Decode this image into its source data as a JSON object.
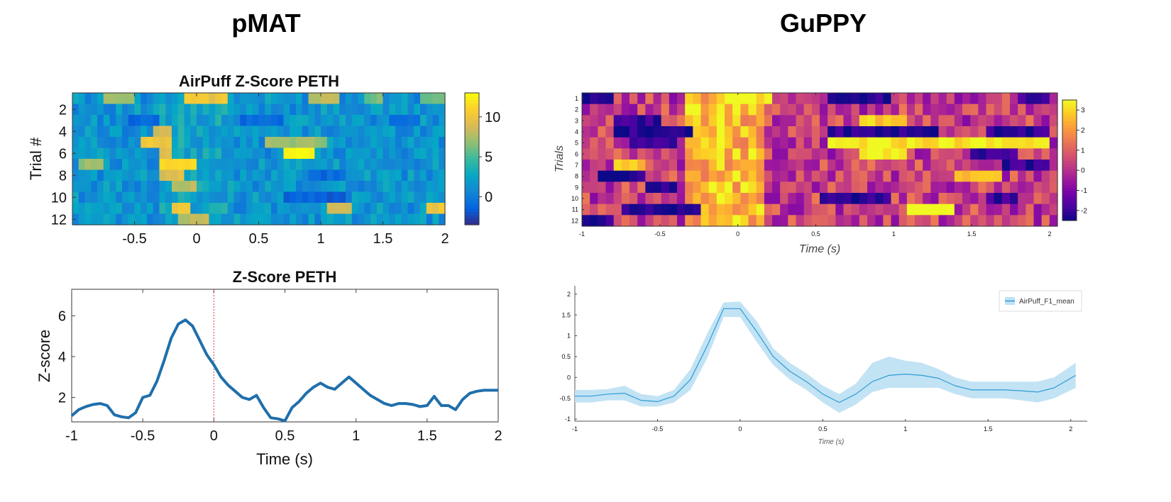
{
  "titles": {
    "left": "pMAT",
    "right": "GuPPY"
  },
  "chart_data": [
    {
      "id": "pmat-heatmap",
      "type": "heatmap",
      "title": "AirPuff  Z-Score PETH",
      "xlabel": "",
      "ylabel": "Trial #",
      "xlim": [
        -1,
        2
      ],
      "x_ticks": [
        -0.5,
        0,
        0.5,
        1,
        1.5,
        2
      ],
      "x_tick_labels": [
        "-0.5",
        "0",
        "0.5",
        "1",
        "1.5",
        "2"
      ],
      "y_ticks": [
        2,
        4,
        6,
        8,
        10,
        12
      ],
      "y_tick_labels": [
        "2",
        "4",
        "6",
        "8",
        "10",
        "12"
      ],
      "trials": 12,
      "colormap": "parula",
      "colorbar": {
        "range": [
          -3.5,
          13
        ],
        "ticks": [
          0,
          5,
          10
        ],
        "tick_labels": [
          "0",
          "5",
          "10"
        ]
      },
      "events": [
        {
          "trial": 1,
          "t0": -0.75,
          "t1": -0.5,
          "v": 7
        },
        {
          "trial": 1,
          "t0": -0.1,
          "t1": 0.25,
          "v": 10
        },
        {
          "trial": 1,
          "t0": 0.9,
          "t1": 1.15,
          "v": 8
        },
        {
          "trial": 1,
          "t0": 1.35,
          "t1": 1.5,
          "v": 6
        },
        {
          "trial": 1,
          "t0": 1.8,
          "t1": 2.0,
          "v": 6
        },
        {
          "trial": 3,
          "t0": -0.55,
          "t1": -0.3,
          "v": -1
        },
        {
          "trial": 3,
          "t0": 0.35,
          "t1": 0.7,
          "v": -1
        },
        {
          "trial": 3,
          "t0": 1.55,
          "t1": 1.8,
          "v": -1
        },
        {
          "trial": 4,
          "t0": -0.35,
          "t1": -0.2,
          "v": 9
        },
        {
          "trial": 5,
          "t0": -0.45,
          "t1": -0.2,
          "v": 10
        },
        {
          "trial": 5,
          "t0": 0.55,
          "t1": 1.05,
          "v": 7
        },
        {
          "trial": 6,
          "t0": -0.3,
          "t1": -0.2,
          "v": 9
        },
        {
          "trial": 6,
          "t0": 0.7,
          "t1": 0.95,
          "v": 13
        },
        {
          "trial": 7,
          "t0": -0.95,
          "t1": -0.75,
          "v": 7
        },
        {
          "trial": 7,
          "t0": -0.3,
          "t1": 0.0,
          "v": 11
        },
        {
          "trial": 8,
          "t0": -0.3,
          "t1": -0.1,
          "v": 9
        },
        {
          "trial": 8,
          "t0": 0.9,
          "t1": 1.2,
          "v": -1
        },
        {
          "trial": 9,
          "t0": -0.2,
          "t1": 0.0,
          "v": 8
        },
        {
          "trial": 10,
          "t0": 0.7,
          "t1": 1.2,
          "v": -1.5
        },
        {
          "trial": 11,
          "t0": -0.2,
          "t1": -0.05,
          "v": 10
        },
        {
          "trial": 11,
          "t0": 1.05,
          "t1": 1.25,
          "v": 8
        },
        {
          "trial": 11,
          "t0": 1.85,
          "t1": 2.0,
          "v": 10
        },
        {
          "trial": 12,
          "t0": -0.15,
          "t1": 0.1,
          "v": 8
        }
      ]
    },
    {
      "id": "pmat-line",
      "type": "line",
      "title": "Z-Score PETH",
      "xlabel": "Time (s)",
      "ylabel": "Z-score",
      "xlim": [
        -1,
        2
      ],
      "ylim": [
        0.8,
        7.3
      ],
      "x_ticks": [
        -1,
        -0.5,
        0,
        0.5,
        1,
        1.5,
        2
      ],
      "x_tick_labels": [
        "-1",
        "-0.5",
        "0",
        "0.5",
        "1",
        "1.5",
        "2"
      ],
      "y_ticks": [
        2,
        4,
        6
      ],
      "y_tick_labels": [
        "2",
        "4",
        "6"
      ],
      "vline_x": 0,
      "series": [
        {
          "color": "#1f6fab",
          "x": [
            -1,
            -0.95,
            -0.9,
            -0.85,
            -0.8,
            -0.75,
            -0.7,
            -0.65,
            -0.6,
            -0.55,
            -0.5,
            -0.45,
            -0.4,
            -0.35,
            -0.3,
            -0.25,
            -0.2,
            -0.15,
            -0.1,
            -0.05,
            0,
            0.05,
            0.1,
            0.15,
            0.2,
            0.25,
            0.3,
            0.35,
            0.4,
            0.45,
            0.5,
            0.55,
            0.6,
            0.65,
            0.7,
            0.75,
            0.8,
            0.85,
            0.9,
            0.95,
            1.0,
            1.05,
            1.1,
            1.15,
            1.2,
            1.25,
            1.3,
            1.35,
            1.4,
            1.45,
            1.5,
            1.55,
            1.6,
            1.65,
            1.7,
            1.75,
            1.8,
            1.85,
            1.9,
            1.95,
            2.0
          ],
          "y": [
            1.1,
            1.4,
            1.55,
            1.65,
            1.7,
            1.6,
            1.15,
            1.05,
            1.0,
            1.25,
            2.0,
            2.1,
            2.8,
            3.8,
            4.9,
            5.6,
            5.8,
            5.5,
            4.8,
            4.1,
            3.6,
            3.0,
            2.6,
            2.3,
            2.0,
            1.9,
            2.1,
            1.5,
            1.0,
            0.95,
            0.85,
            1.5,
            1.8,
            2.2,
            2.5,
            2.7,
            2.5,
            2.4,
            2.7,
            3.0,
            2.7,
            2.4,
            2.1,
            1.9,
            1.7,
            1.6,
            1.7,
            1.7,
            1.65,
            1.55,
            1.6,
            2.05,
            1.6,
            1.6,
            1.4,
            1.9,
            2.2,
            2.3,
            2.35,
            2.35,
            2.35
          ]
        }
      ]
    },
    {
      "id": "guppy-heatmap",
      "type": "heatmap",
      "xlabel": "Time (s)",
      "ylabel": "Trials",
      "xlim": [
        -1,
        2.05
      ],
      "x_ticks": [
        -1,
        -0.5,
        0,
        0.5,
        1,
        1.5,
        2
      ],
      "x_tick_labels": [
        "-1",
        "-0.5",
        "0",
        "0.5",
        "1",
        "1.5",
        "2"
      ],
      "y_ticks": [
        1,
        2,
        3,
        4,
        5,
        6,
        7,
        8,
        9,
        10,
        11,
        12
      ],
      "y_tick_labels": [
        "1",
        "2",
        "3",
        "4",
        "5",
        "6",
        "7",
        "8",
        "9",
        "10",
        "11",
        "12"
      ],
      "trials": 12,
      "colormap": "plasma",
      "colorbar": {
        "range": [
          -2.5,
          3.5
        ],
        "ticks": [
          -2,
          -1,
          0,
          1,
          2,
          3
        ],
        "tick_labels": [
          "-2",
          "-1",
          "0",
          "1",
          "2",
          "3"
        ]
      },
      "events": [
        {
          "trial": 1,
          "t0": -1.0,
          "t1": -0.8,
          "v": -2.3
        },
        {
          "trial": 1,
          "t0": -0.1,
          "t1": 0.2,
          "v": 3.3
        },
        {
          "trial": 1,
          "t0": 0.6,
          "t1": 1.0,
          "v": -2.3
        },
        {
          "trial": 1,
          "t0": 1.8,
          "t1": 2.0,
          "v": -2
        },
        {
          "trial": 3,
          "t0": -0.8,
          "t1": -0.5,
          "v": -2
        },
        {
          "trial": 3,
          "t0": 0.8,
          "t1": 1.1,
          "v": 2.8
        },
        {
          "trial": 4,
          "t0": -0.8,
          "t1": -0.3,
          "v": -2.3
        },
        {
          "trial": 4,
          "t0": 0.6,
          "t1": 1.3,
          "v": -2.2
        },
        {
          "trial": 4,
          "t0": 1.6,
          "t1": 2.0,
          "v": -2
        },
        {
          "trial": 5,
          "t0": -0.7,
          "t1": -0.4,
          "v": -2.2
        },
        {
          "trial": 5,
          "t0": 0.6,
          "t1": 2.0,
          "v": 3.2
        },
        {
          "trial": 6,
          "t0": 0.8,
          "t1": 1.1,
          "v": 3.4
        },
        {
          "trial": 6,
          "t0": 1.5,
          "t1": 1.8,
          "v": -2
        },
        {
          "trial": 7,
          "t0": -0.8,
          "t1": -0.6,
          "v": 2.8
        },
        {
          "trial": 7,
          "t0": 1.7,
          "t1": 2.0,
          "v": -2
        },
        {
          "trial": 8,
          "t0": -0.9,
          "t1": -0.6,
          "v": -2.3
        },
        {
          "trial": 8,
          "t0": 1.4,
          "t1": 1.7,
          "v": 2.5
        },
        {
          "trial": 9,
          "t0": -0.6,
          "t1": -0.4,
          "v": -2.2
        },
        {
          "trial": 10,
          "t0": 0.5,
          "t1": 1.0,
          "v": -2.3
        },
        {
          "trial": 10,
          "t0": 1.6,
          "t1": 1.8,
          "v": -2
        },
        {
          "trial": 11,
          "t0": -0.75,
          "t1": -0.25,
          "v": -2.4
        },
        {
          "trial": 11,
          "t0": 1.1,
          "t1": 1.4,
          "v": 3.2
        },
        {
          "trial": 12,
          "t0": -1.0,
          "t1": -0.8,
          "v": -2.3
        }
      ]
    },
    {
      "id": "guppy-line",
      "type": "line",
      "xlabel": "Time (s)",
      "ylabel": "",
      "xlim": [
        -1,
        2.1
      ],
      "ylim": [
        -1.05,
        2.2
      ],
      "x_ticks": [
        -1,
        -0.5,
        0,
        0.5,
        1,
        1.5,
        2
      ],
      "x_tick_labels": [
        "-1",
        "-0.5",
        "0",
        "0.5",
        "1",
        "1.5",
        "2"
      ],
      "y_ticks": [
        -1,
        -0.5,
        0,
        0.5,
        1,
        1.5,
        2
      ],
      "y_tick_labels": [
        "-1",
        "-0.5",
        "0",
        "0.5",
        "1",
        "1.5",
        "2"
      ],
      "legend": {
        "position": "top-right"
      },
      "series": [
        {
          "name": "AirPuff_F1_mean",
          "color": "#2e9bd6",
          "fill": "#bfe2f3",
          "x": [
            -1,
            -0.9,
            -0.8,
            -0.7,
            -0.6,
            -0.5,
            -0.4,
            -0.3,
            -0.2,
            -0.1,
            0,
            0.1,
            0.2,
            0.3,
            0.4,
            0.5,
            0.6,
            0.7,
            0.8,
            0.9,
            1.0,
            1.1,
            1.2,
            1.3,
            1.4,
            1.5,
            1.6,
            1.7,
            1.8,
            1.9,
            2.03
          ],
          "y": [
            -0.45,
            -0.45,
            -0.4,
            -0.38,
            -0.55,
            -0.58,
            -0.45,
            -0.05,
            0.75,
            1.65,
            1.65,
            1.1,
            0.5,
            0.15,
            -0.1,
            -0.4,
            -0.6,
            -0.4,
            -0.1,
            0.05,
            0.08,
            0.05,
            -0.02,
            -0.2,
            -0.3,
            -0.3,
            -0.3,
            -0.32,
            -0.35,
            -0.25,
            0.05
          ],
          "lower": [
            -0.6,
            -0.6,
            -0.55,
            -0.55,
            -0.7,
            -0.7,
            -0.6,
            -0.3,
            0.45,
            1.45,
            1.45,
            0.85,
            0.3,
            -0.05,
            -0.3,
            -0.6,
            -0.85,
            -0.65,
            -0.35,
            -0.25,
            -0.25,
            -0.25,
            -0.25,
            -0.4,
            -0.5,
            -0.5,
            -0.5,
            -0.55,
            -0.6,
            -0.5,
            -0.25
          ],
          "upper": [
            -0.3,
            -0.3,
            -0.28,
            -0.2,
            -0.4,
            -0.45,
            -0.3,
            0.2,
            1.05,
            1.8,
            1.82,
            1.35,
            0.7,
            0.35,
            0.1,
            -0.2,
            -0.4,
            -0.15,
            0.35,
            0.5,
            0.4,
            0.35,
            0.2,
            0.0,
            -0.1,
            -0.1,
            -0.1,
            -0.1,
            -0.1,
            0.0,
            0.35
          ]
        }
      ]
    }
  ]
}
